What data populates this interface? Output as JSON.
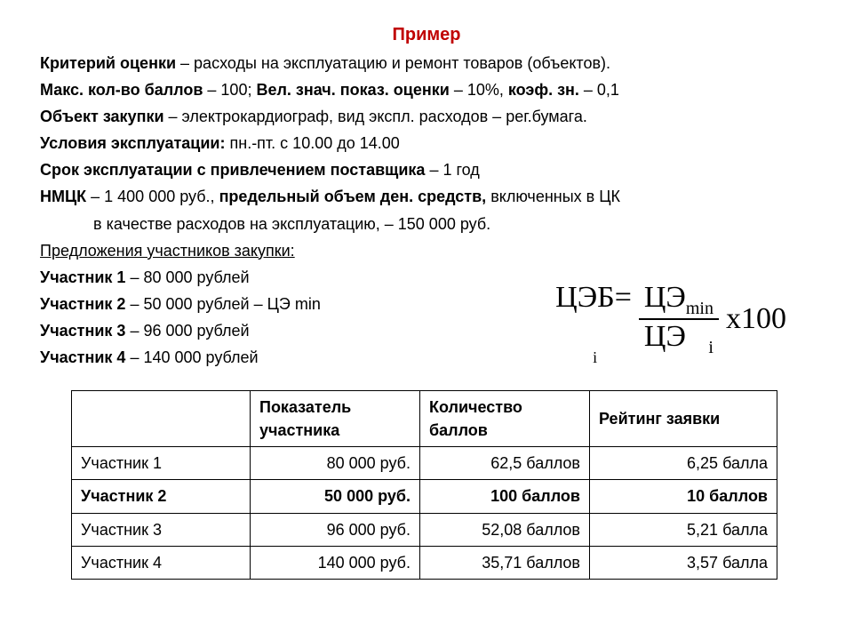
{
  "title": "Пример",
  "lines": {
    "l1a": "Критерий оценки",
    "l1b": " – расходы на эксплуатацию и ремонт товаров (объектов).",
    "l2a": "Макс. кол-во баллов",
    "l2b": " – 100; ",
    "l2c": "Вел. знач. показ. оценки",
    "l2d": " – 10%, ",
    "l2e": "коэф. зн.",
    "l2f": " – 0,1",
    "l3a": "Объект закупки",
    "l3b": " – электрокардиограф, вид экспл. расходов – рег.бумага.",
    "l4a": "Условия эксплуатации:",
    "l4b": " пн.-пт. с 10.00 до 14.00",
    "l5a": "Срок эксплуатации с привлечением поставщика",
    "l5b": " – 1 год",
    "l6a": "НМЦК",
    "l6b": " – 1 400 000 руб., ",
    "l6c": "предельный объем ден. средств,",
    "l6d": " включенных  в ЦК",
    "l7": "в качестве расходов на эксплуатацию, – 150 000 руб.",
    "l8": "Предложения участников закупки: ",
    "p1a": "Участник 1",
    "p1b": " – 80 000 рублей",
    "p2a": "Участник 2",
    "p2b": " – 50 000 рублей – ЦЭ min",
    "p3a": "Участник 3",
    "p3b": " – 96 000 рублей",
    "p4a": "Участник 4",
    "p4b": " – 140 000 рублей"
  },
  "formula": {
    "lhs": "ЦЭБ=",
    "lhs_sub": "i",
    "num1": "ЦЭ",
    "num_sub": "min",
    "den1": "ЦЭ",
    "den_sub": "i",
    "tail": "x100"
  },
  "table": {
    "headers": [
      "",
      "Показатель участника",
      "Количество баллов",
      "Рейтинг заявки"
    ],
    "rows": [
      {
        "hl": false,
        "c": [
          "Участник 1",
          "80 000 руб.",
          "62,5 баллов",
          "6,25 балла"
        ]
      },
      {
        "hl": true,
        "c": [
          "Участник 2",
          "50 000 руб.",
          "100 баллов",
          "10 баллов"
        ]
      },
      {
        "hl": false,
        "c": [
          "Участник 3",
          "96 000 руб.",
          "52,08 баллов",
          "5,21 балла"
        ]
      },
      {
        "hl": false,
        "c": [
          "Участник 4",
          "140 000 руб.",
          "35,71 баллов",
          "3,57 балла"
        ]
      }
    ]
  }
}
